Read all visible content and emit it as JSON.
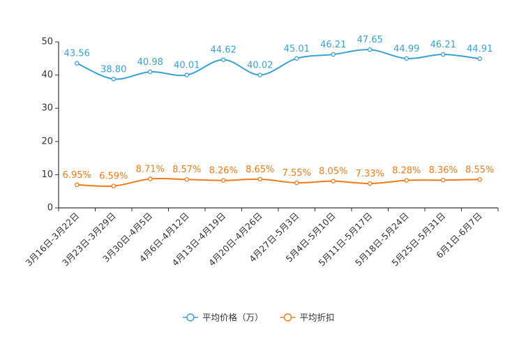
{
  "chart_data": {
    "type": "line",
    "title": "",
    "xlabel": "",
    "ylabel": "",
    "ylim": [
      0,
      50
    ],
    "yticks": [
      0,
      10,
      20,
      30,
      40,
      50
    ],
    "grid": false,
    "legend_position": "bottom-center",
    "categories": [
      "3月16日-3月22日",
      "3月23日-3月29日",
      "3月30日-4月5日",
      "4月6日-4月12日",
      "4月13日-4月19日",
      "4月20日-4月26日",
      "4月27日-5月3日",
      "5月4日-5月10日",
      "5月11日-5月17日",
      "5月18日-5月24日",
      "5月25日-5月31日",
      "6月1日-6月7日"
    ],
    "series": [
      {
        "name": "平均价格（万）",
        "color": "#3aa0d4",
        "values": [
          43.56,
          38.8,
          40.98,
          40.01,
          44.62,
          40.02,
          45.01,
          46.21,
          47.65,
          44.99,
          46.21,
          44.91
        ],
        "labels": [
          "43.56",
          "38.80",
          "40.98",
          "40.01",
          "44.62",
          "40.02",
          "45.01",
          "46.21",
          "47.65",
          "44.99",
          "46.21",
          "44.91"
        ]
      },
      {
        "name": "平均折扣",
        "color": "#f07a18",
        "values": [
          6.95,
          6.59,
          8.71,
          8.57,
          8.26,
          8.65,
          7.55,
          8.05,
          7.33,
          8.28,
          8.36,
          8.55
        ],
        "labels": [
          "6.95%",
          "6.59%",
          "8.71%",
          "8.57%",
          "8.26%",
          "8.65%",
          "7.55%",
          "8.05%",
          "7.33%",
          "8.28%",
          "8.36%",
          "8.55%"
        ]
      }
    ]
  }
}
